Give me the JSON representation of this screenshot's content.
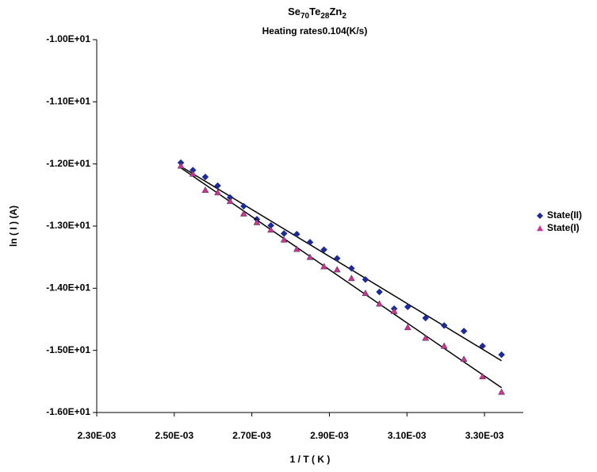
{
  "chart_data": {
    "type": "scatter",
    "title": [
      "Se",
      "70",
      "Te",
      "28",
      "Zn",
      "2"
    ],
    "subtitle": "Heating rates0.104(K/s)",
    "x_label": "1 / T ( K )",
    "y_label": "ln ( I ) (A)",
    "xlim": [
      0.0023,
      0.0034
    ],
    "ylim": [
      -16,
      -10
    ],
    "xticks": [
      {
        "value": 0.0023,
        "label": "2.30E-03"
      },
      {
        "value": 0.0025,
        "label": "2.50E-03"
      },
      {
        "value": 0.0027,
        "label": "2.70E-03"
      },
      {
        "value": 0.0029,
        "label": "2.90E-03"
      },
      {
        "value": 0.0031,
        "label": "3.10E-03"
      },
      {
        "value": 0.0033,
        "label": "3.30E-03"
      }
    ],
    "yticks": [
      {
        "value": -10,
        "label": "-1.00E+01"
      },
      {
        "value": -11,
        "label": "-1.10E+01"
      },
      {
        "value": -12,
        "label": "-1.20E+01"
      },
      {
        "value": -13,
        "label": "-1.30E+01"
      },
      {
        "value": -14,
        "label": "-1.40E+01"
      },
      {
        "value": -15,
        "label": "-1.50E+01"
      },
      {
        "value": -16,
        "label": "-1.60E+01"
      }
    ],
    "grid": false,
    "legend": "right",
    "trendline": true,
    "series": [
      {
        "name": "State(II)",
        "color": "#1c2a9c",
        "marker": "diamond",
        "x": [
          0.002517,
          0.002548,
          0.00258,
          0.002612,
          0.002644,
          0.002679,
          0.002713,
          0.002749,
          0.002783,
          0.002816,
          0.00285,
          0.002886,
          0.00292,
          0.002957,
          0.002993,
          0.003029,
          0.003067,
          0.003102,
          0.003148,
          0.003196,
          0.003247,
          0.003295,
          0.003344
        ],
        "values": [
          -11.98,
          -12.1,
          -12.21,
          -12.35,
          -12.54,
          -12.68,
          -12.89,
          -12.99,
          -13.12,
          -13.13,
          -13.26,
          -13.38,
          -13.52,
          -13.68,
          -13.86,
          -14.06,
          -14.33,
          -14.3,
          -14.48,
          -14.6,
          -14.69,
          -14.93,
          -15.07
        ]
      },
      {
        "name": "State(I)",
        "color": "#cc3399",
        "marker": "triangle",
        "x": [
          0.002517,
          0.002548,
          0.00258,
          0.002612,
          0.002644,
          0.002679,
          0.002713,
          0.002749,
          0.002783,
          0.002816,
          0.00285,
          0.002886,
          0.00292,
          0.002957,
          0.002993,
          0.003029,
          0.003067,
          0.003102,
          0.003148,
          0.003196,
          0.003247,
          0.003295,
          0.003344
        ],
        "values": [
          -12.03,
          -12.16,
          -12.42,
          -12.46,
          -12.6,
          -12.8,
          -12.94,
          -13.06,
          -13.22,
          -13.37,
          -13.5,
          -13.65,
          -13.7,
          -13.84,
          -14.08,
          -14.25,
          -14.37,
          -14.63,
          -14.8,
          -14.93,
          -15.14,
          -15.42,
          -15.67
        ]
      }
    ]
  }
}
